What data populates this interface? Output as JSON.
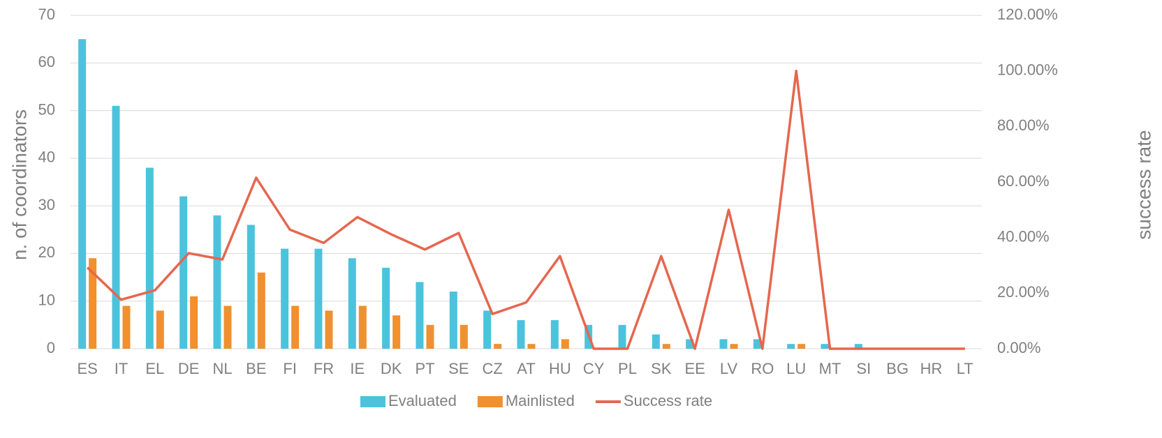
{
  "chart_data": {
    "type": "bar_line",
    "categories": [
      "ES",
      "IT",
      "EL",
      "DE",
      "NL",
      "BE",
      "FI",
      "FR",
      "IE",
      "DK",
      "PT",
      "SE",
      "CZ",
      "AT",
      "HU",
      "CY",
      "PL",
      "SK",
      "EE",
      "LV",
      "RO",
      "LU",
      "MT",
      "SI",
      "BG",
      "HR",
      "LT"
    ],
    "series": [
      {
        "name": "Evaluated",
        "color": "#4bc3dc",
        "type": "bar",
        "values": [
          65,
          51,
          38,
          32,
          28,
          26,
          21,
          21,
          19,
          17,
          14,
          12,
          8,
          6,
          6,
          5,
          5,
          3,
          2,
          2,
          2,
          1,
          1,
          1,
          0,
          0,
          0
        ]
      },
      {
        "name": "Mainlisted",
        "color": "#f0902e",
        "type": "bar",
        "values": [
          19,
          9,
          8,
          11,
          9,
          16,
          9,
          8,
          9,
          7,
          5,
          5,
          1,
          1,
          2,
          0,
          0,
          1,
          0,
          1,
          0,
          1,
          0,
          0,
          0,
          0,
          0
        ]
      },
      {
        "name": "Success rate",
        "color": "#e5674f",
        "type": "line",
        "axis": "y2",
        "values": [
          29.23,
          17.65,
          21.05,
          34.38,
          32.14,
          61.54,
          42.86,
          38.1,
          47.37,
          41.18,
          35.71,
          41.67,
          12.5,
          16.67,
          33.33,
          0,
          0,
          33.33,
          0,
          50,
          0,
          100,
          0,
          0,
          0,
          0,
          0
        ]
      }
    ],
    "y_label": "n. of coordinators",
    "y2_label": "success rate",
    "ylim": [
      0,
      70
    ],
    "yticks": [
      0,
      10,
      20,
      30,
      40,
      50,
      60,
      70
    ],
    "y2lim": [
      0,
      120
    ],
    "y2ticks": [
      {
        "value": 0,
        "label": "0.00%"
      },
      {
        "value": 20,
        "label": "20.00%"
      },
      {
        "value": 40,
        "label": "40.00%"
      },
      {
        "value": 60,
        "label": "60.00%"
      },
      {
        "value": 80,
        "label": "80.00%"
      },
      {
        "value": 100,
        "label": "100.00%"
      },
      {
        "value": 120,
        "label": "120.00%"
      }
    ],
    "grid": true,
    "legend": "bottom"
  }
}
